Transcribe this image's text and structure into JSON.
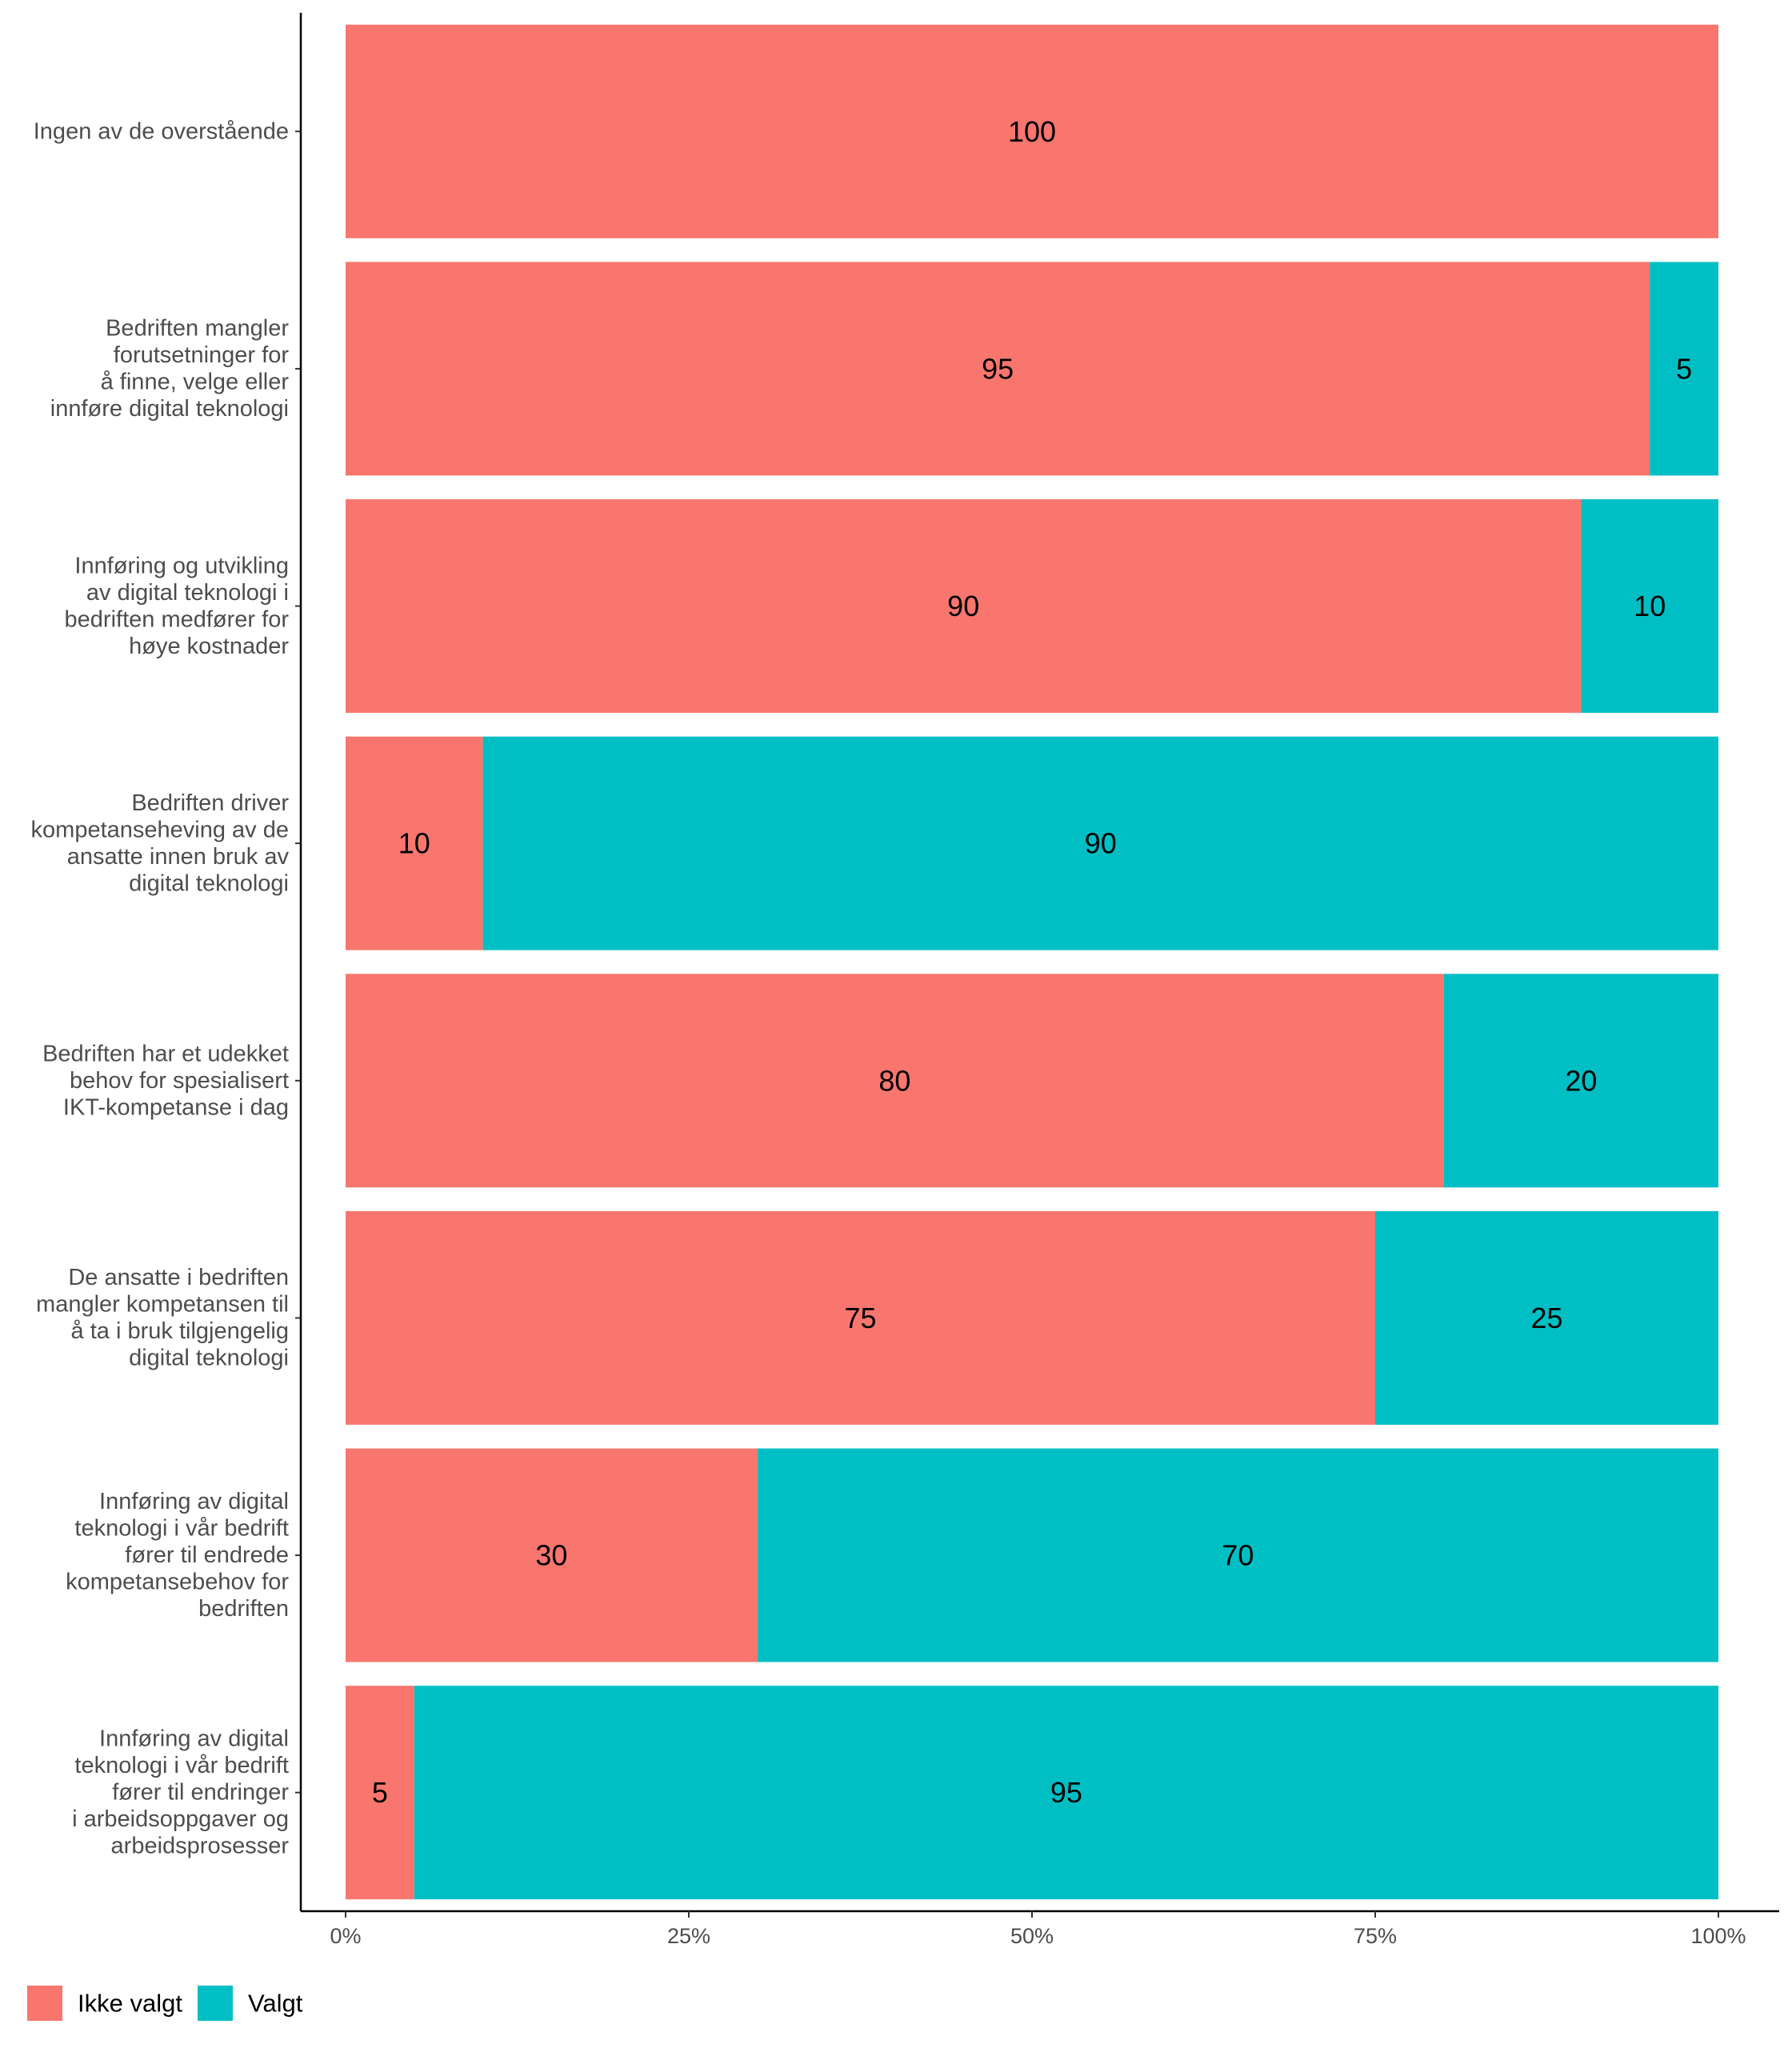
{
  "chart_data": {
    "type": "bar",
    "orientation": "horizontal",
    "stacked": true,
    "normalized": true,
    "categories": [
      [
        "Ingen av de overstående"
      ],
      [
        "Bedriften mangler",
        "forutsetninger for",
        "å finne, velge eller",
        "innføre digital teknologi"
      ],
      [
        "Innføring og utvikling",
        "av digital teknologi i",
        "bedriften medfører for",
        "høye kostnader"
      ],
      [
        "Bedriften driver",
        "kompetanseheving av de",
        "ansatte innen bruk av",
        "digital teknologi"
      ],
      [
        "Bedriften har et udekket",
        "behov for spesialisert",
        "IKT-kompetanse i dag"
      ],
      [
        "De ansatte i bedriften",
        "mangler kompetansen til",
        "å ta i bruk tilgjengelig",
        "digital teknologi"
      ],
      [
        "Innføring av digital",
        "teknologi i vår bedrift",
        "fører til endrede",
        "kompetansebehov for",
        "bedriften"
      ],
      [
        "Innføring av digital",
        "teknologi i vår bedrift",
        "fører til endringer",
        "i arbeidsoppgaver og",
        "arbeidsprosesser"
      ]
    ],
    "series": [
      {
        "name": "Ikke valgt",
        "color": "#F8766D",
        "values": [
          100,
          95,
          90,
          10,
          80,
          75,
          30,
          5
        ]
      },
      {
        "name": "Valgt",
        "color": "#00BFC4",
        "values": [
          0,
          5,
          10,
          90,
          20,
          25,
          70,
          95
        ]
      }
    ],
    "x_ticks": [
      "0%",
      "25%",
      "50%",
      "75%",
      "100%"
    ],
    "xlim": [
      0,
      100
    ],
    "title": "",
    "xlabel": "",
    "ylabel": "",
    "grid": false,
    "legend_position": "bottom-left"
  }
}
